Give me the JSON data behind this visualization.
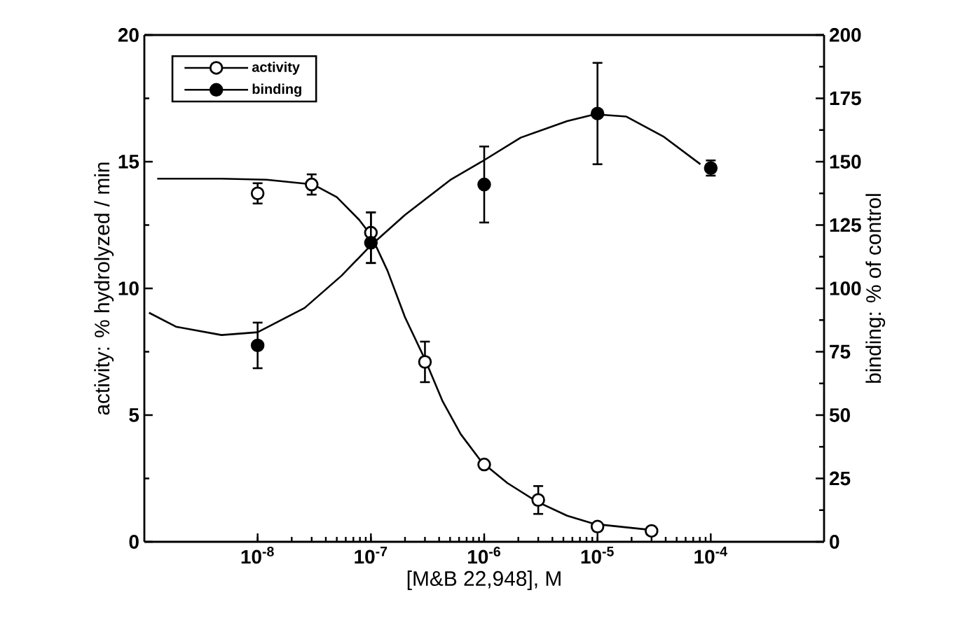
{
  "chart_data": {
    "type": "scatter",
    "xlabel": "[M&B 22,948], M",
    "ylabel": "activity: % hydrolyzed / min",
    "y2label": "binding: % of control",
    "log": "x",
    "xlim": [
      1e-09,
      0.001
    ],
    "xticks": [
      {
        "value": 1e-08,
        "label": "10$^{-8}$"
      },
      {
        "value": 1e-07,
        "label": "10$^{-7}$"
      },
      {
        "value": 1e-06,
        "label": "10$^{-6}$"
      },
      {
        "value": 1e-05,
        "label": "10$^{-5}$"
      },
      {
        "value": 0.0001,
        "label": "10$^{-4}$"
      }
    ],
    "ylim": [
      0,
      20
    ],
    "yticks": [
      0,
      5,
      10,
      15,
      20
    ],
    "y2lim": [
      0,
      200
    ],
    "y2ticks": [
      0,
      25,
      50,
      75,
      100,
      125,
      150,
      175,
      200
    ],
    "legend": "top left",
    "grid": false,
    "series": [
      {
        "name": "activity",
        "marker": "circle",
        "color": "#ffffff",
        "x": [
          1e-08,
          3e-08,
          1e-07,
          3e-07,
          1e-06,
          3e-06,
          1e-05,
          3e-05
        ],
        "values": [
          13.75,
          14.1,
          12.2,
          7.1,
          3.05,
          1.65,
          0.6,
          0.43
        ],
        "errors": [
          0.4,
          0.4,
          [
            11.0,
            13.0
          ],
          0.8,
          null,
          0.55,
          null,
          null
        ]
      },
      {
        "name": "binding",
        "marker": "circle",
        "color": "#000000",
        "axis": "y2",
        "x": [
          1e-08,
          1e-07,
          1e-06,
          1e-05,
          0.0001
        ],
        "values": [
          77.5,
          118,
          141,
          169,
          147.5
        ],
        "errors": [
          9,
          [
            110,
            130
          ],
          15,
          20,
          3
        ]
      },
      {
        "type": "line",
        "marker": "none",
        "color": "#000000",
        "x": [
          1.3e-09,
          4.8e-09,
          1.2e-08,
          3.1e-08,
          5e-08,
          7.9e-08,
          1e-07,
          1.4e-07,
          2e-07,
          3e-07,
          4.3e-07,
          6.2e-07,
          9.5e-07,
          1.6e-06,
          2.9e-06,
          5.4e-06,
          9.5e-06,
          2.8e-05
        ],
        "values": [
          14.33,
          14.33,
          14.29,
          14.1,
          13.6,
          12.7,
          12.1,
          10.7,
          8.86,
          7.2,
          5.54,
          4.25,
          3.15,
          2.32,
          1.59,
          1.03,
          0.7,
          0.48
        ]
      },
      {
        "type": "line",
        "marker": "none",
        "color": "#000000",
        "axis": "y2",
        "x": [
          1.1e-09,
          1.9e-09,
          4.8e-09,
          1e-08,
          2.6e-08,
          5.5e-08,
          1e-07,
          2e-07,
          5.1e-07,
          9.5e-07,
          2.1e-06,
          5.4e-06,
          9.5e-06,
          1.8e-05,
          3.8e-05,
          8.1e-05
        ],
        "values": [
          90.4,
          84.9,
          81.6,
          82.7,
          92.3,
          105,
          117,
          129,
          143,
          150,
          159.5,
          166,
          168.7,
          167.8,
          160,
          149
        ]
      }
    ]
  }
}
